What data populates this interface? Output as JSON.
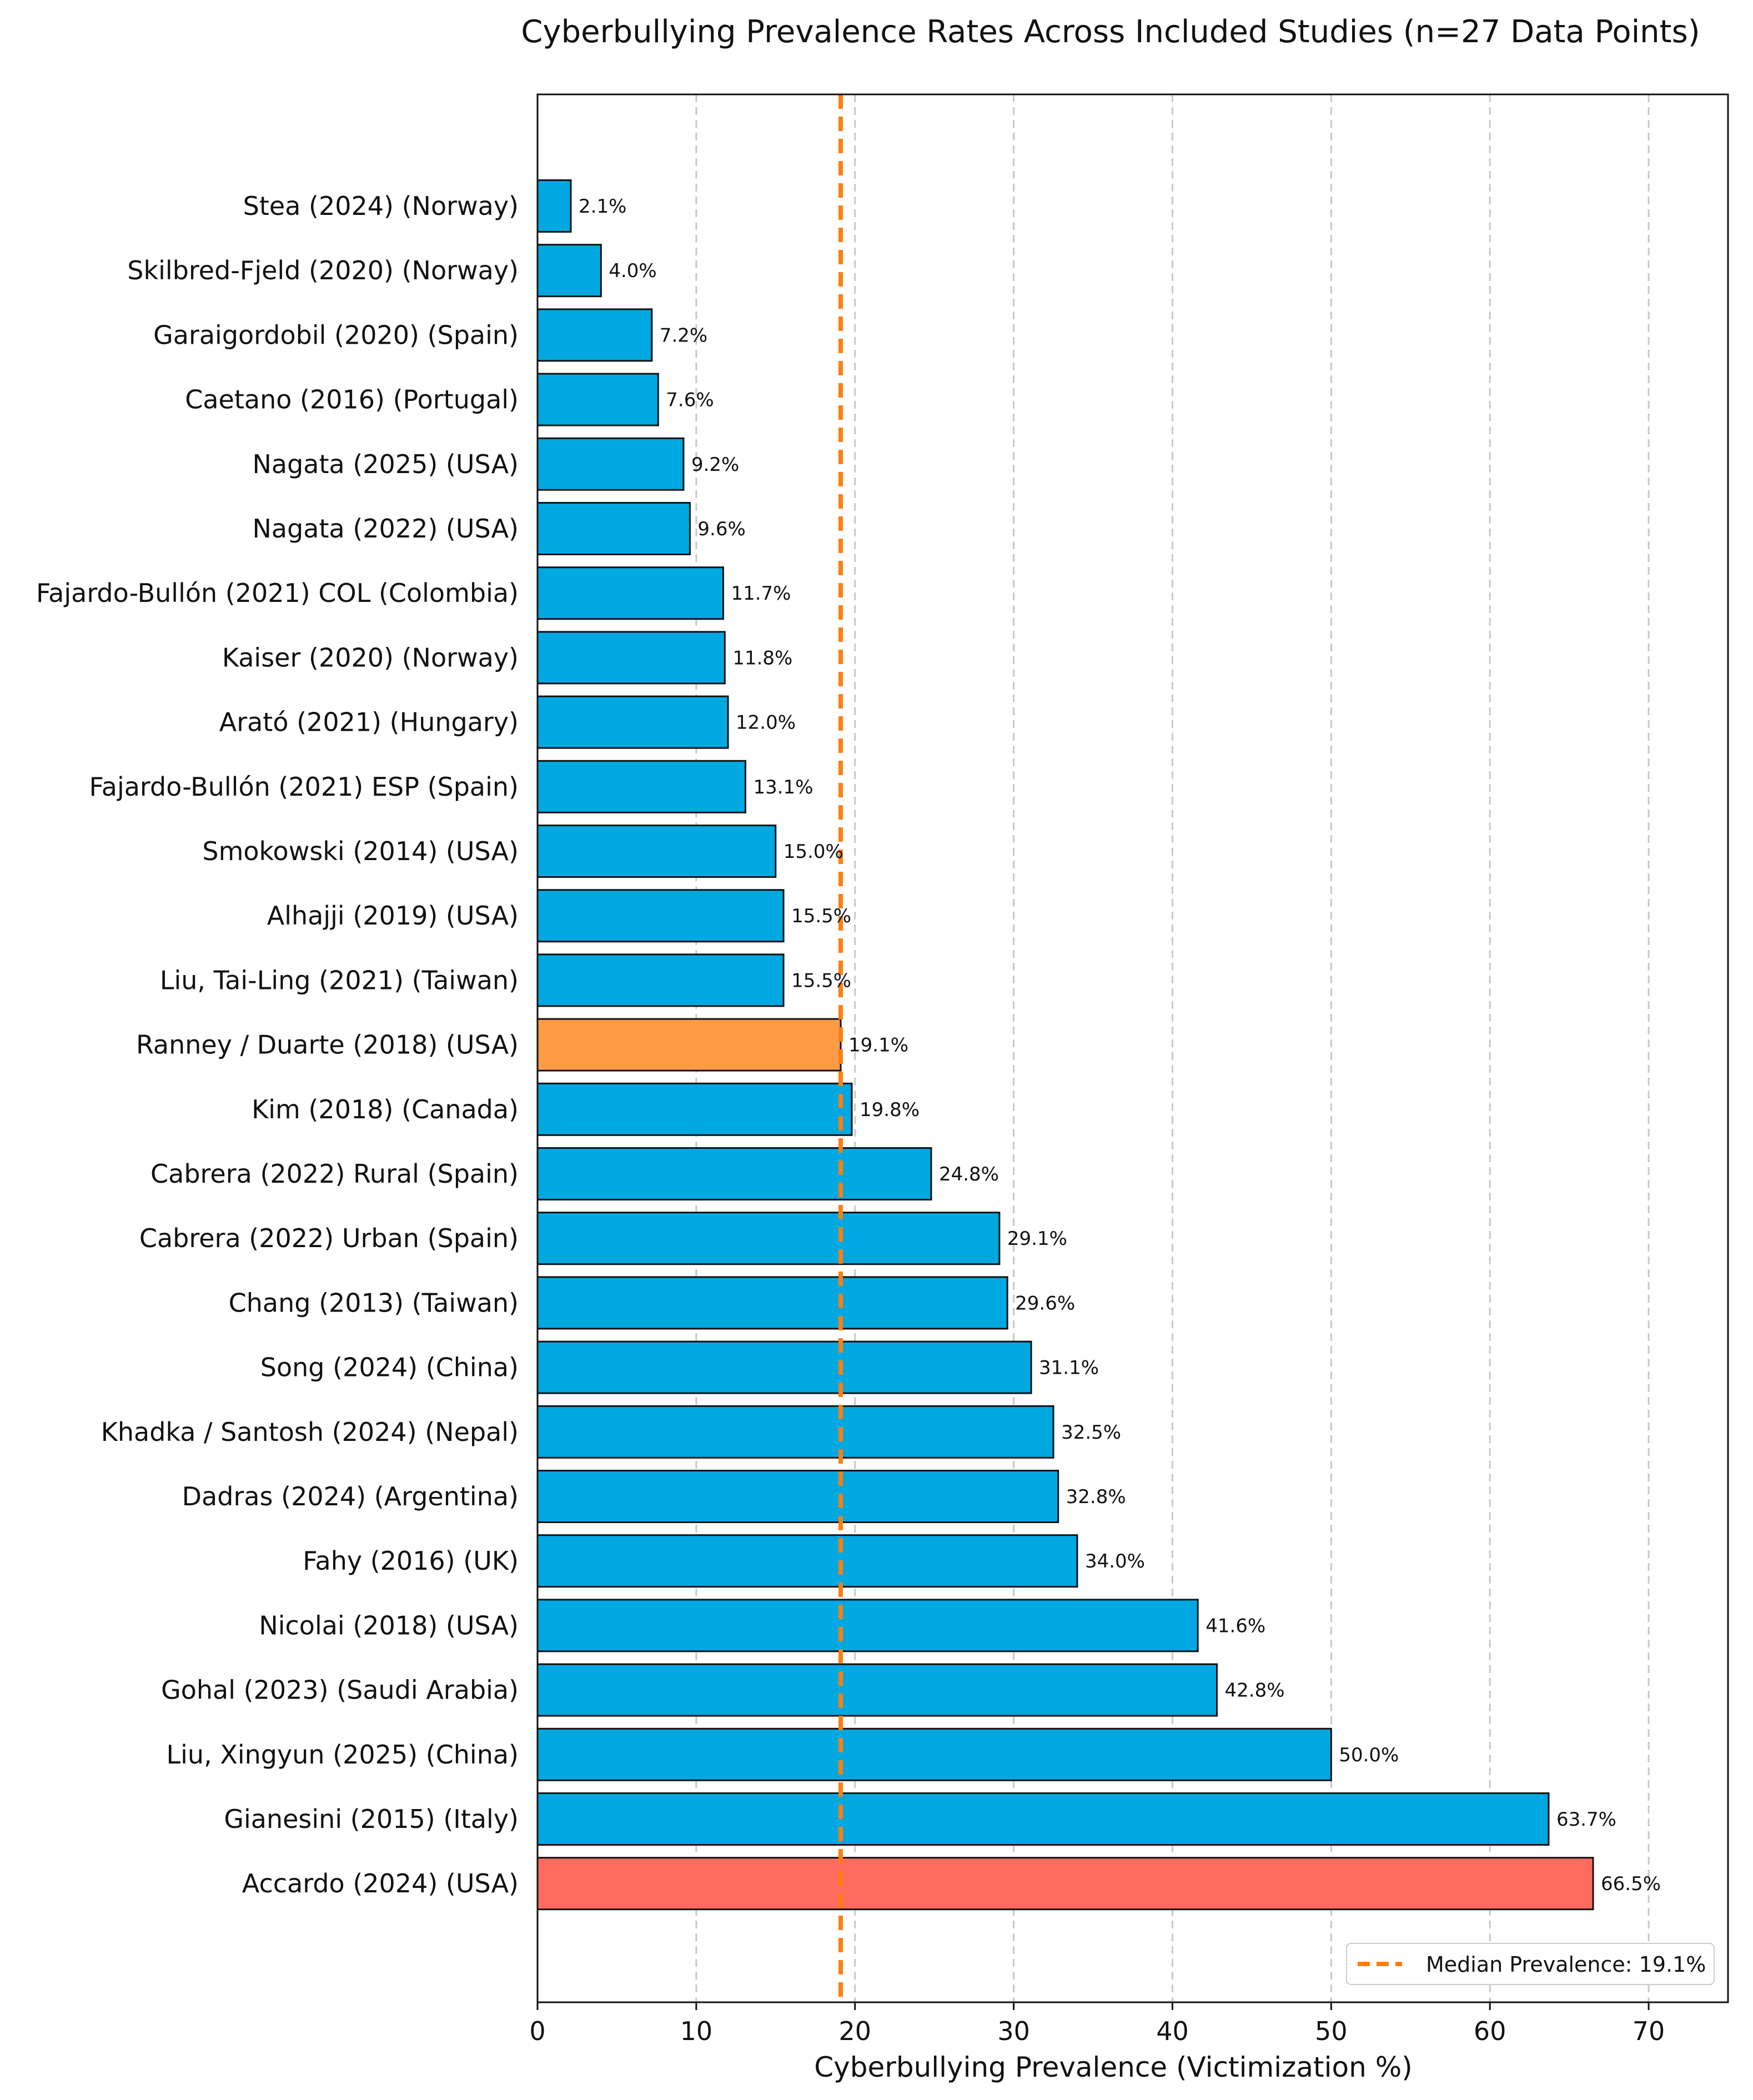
{
  "chart_data": {
    "type": "bar",
    "orientation": "horizontal",
    "title": "Cyberbullying Prevalence Rates Across Included Studies (n=27 Data Points)",
    "xlabel": "Cyberbullying Prevalence (Victimization %)",
    "ylabel": "",
    "xlim": [
      0,
      75
    ],
    "xticks": [
      0,
      10,
      20,
      30,
      40,
      50,
      60,
      70
    ],
    "grid": "x-dashed",
    "value_suffix": "%",
    "categories": [
      "Stea (2024) (Norway)",
      "Skilbred-Fjeld (2020) (Norway)",
      "Garaigordobil (2020) (Spain)",
      "Caetano (2016) (Portugal)",
      "Nagata (2025) (USA)",
      "Nagata (2022) (USA)",
      "Fajardo-Bullón (2021) COL (Colombia)",
      "Kaiser (2020) (Norway)",
      "Arató (2021) (Hungary)",
      "Fajardo-Bullón (2021) ESP (Spain)",
      "Smokowski (2014) (USA)",
      "Alhajji (2019) (USA)",
      "Liu, Tai-Ling (2021) (Taiwan)",
      "Ranney / Duarte (2018) (USA)",
      "Kim (2018) (Canada)",
      "Cabrera (2022) Rural (Spain)",
      "Cabrera (2022) Urban (Spain)",
      "Chang (2013) (Taiwan)",
      "Song (2024) (China)",
      "Khadka / Santosh (2024) (Nepal)",
      "Dadras (2024) (Argentina)",
      "Fahy (2016) (UK)",
      "Nicolai (2018) (USA)",
      "Gohal (2023) (Saudi Arabia)",
      "Liu, Xingyun (2025) (China)",
      "Gianesini (2015) (Italy)",
      "Accardo (2024) (USA)"
    ],
    "values": [
      2.1,
      4.0,
      7.2,
      7.6,
      9.2,
      9.6,
      11.7,
      11.8,
      12.0,
      13.1,
      15.0,
      15.5,
      15.5,
      19.1,
      19.8,
      24.8,
      29.1,
      29.6,
      31.1,
      32.5,
      32.8,
      34.0,
      41.6,
      42.8,
      50.0,
      63.7,
      66.5
    ],
    "value_labels": [
      "2.1%",
      "4.0%",
      "7.2%",
      "7.6%",
      "9.2%",
      "9.6%",
      "11.7%",
      "11.8%",
      "12.0%",
      "13.1%",
      "15.0%",
      "15.5%",
      "15.5%",
      "19.1%",
      "19.8%",
      "24.8%",
      "29.1%",
      "29.6%",
      "31.1%",
      "32.5%",
      "32.8%",
      "34.0%",
      "41.6%",
      "42.8%",
      "50.0%",
      "63.7%",
      "66.5%"
    ],
    "bar_colors": {
      "default": "#00a8e1",
      "median": "#ff9b45",
      "max": "#ff6b5f",
      "edge": "#111111"
    },
    "median_index": 13,
    "max_index": 26,
    "reference_line": {
      "value": 19.1,
      "style": "dashed",
      "color": "#ff7f0e",
      "label": "Median Prevalence: 19.1%"
    },
    "legend": {
      "position": "lower-right",
      "entries": [
        "Median Prevalence: 19.1%"
      ]
    }
  }
}
